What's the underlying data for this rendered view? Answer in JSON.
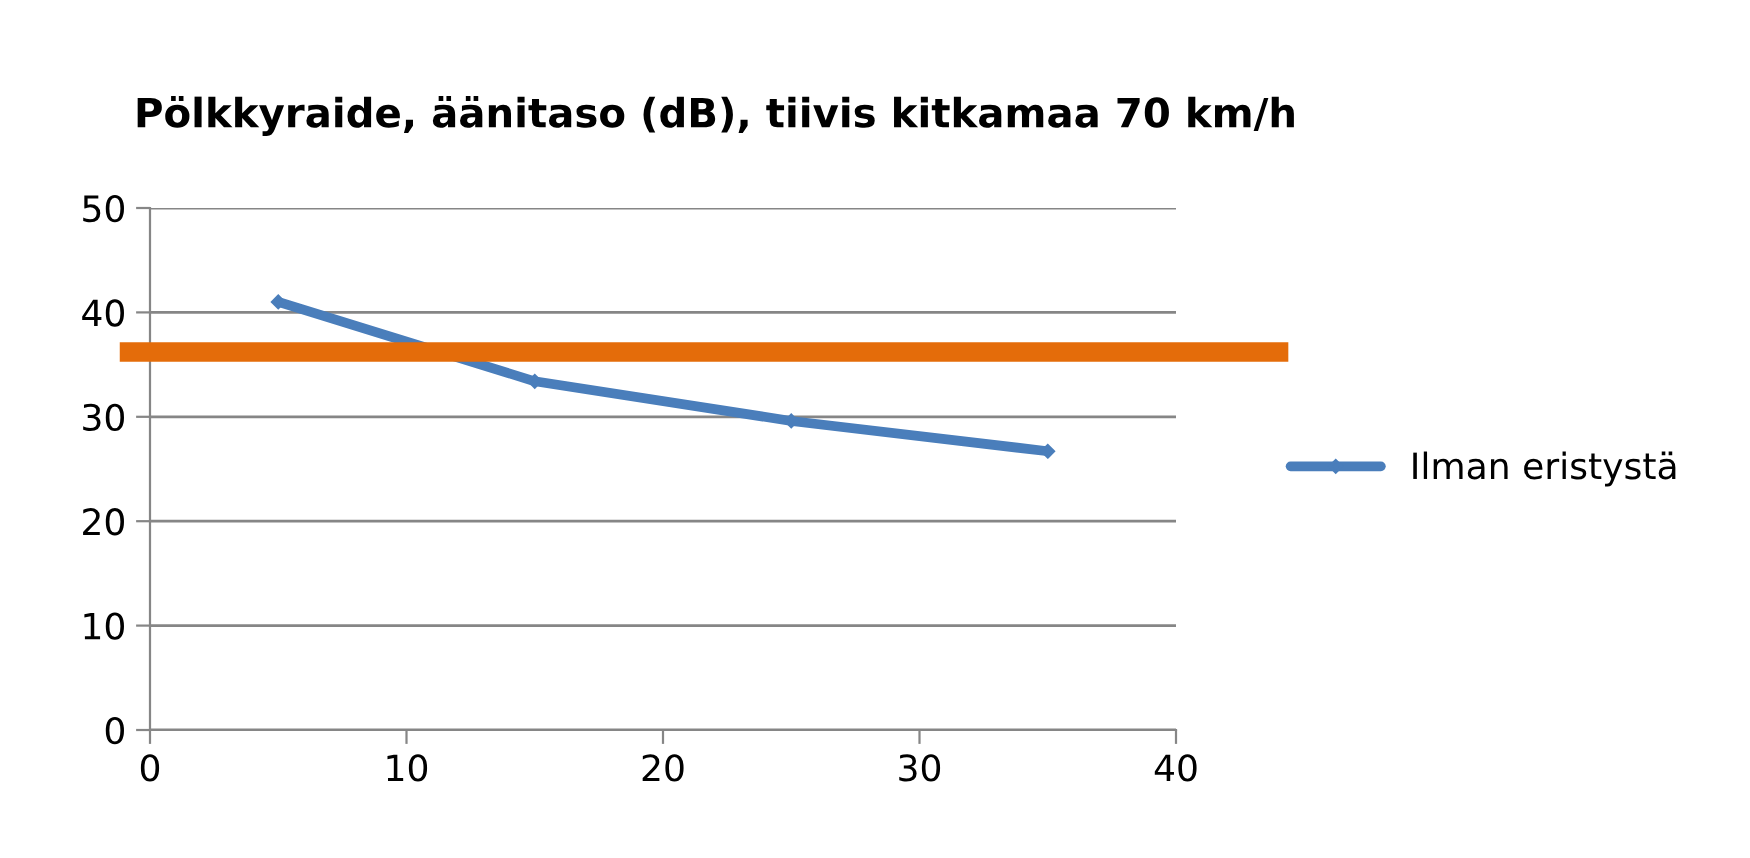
{
  "chart_data": {
    "type": "line",
    "title": "Pölkkyraide, äänitaso (dB), tiivis kitkamaa 70 km/h",
    "x": [
      5,
      15,
      25,
      35
    ],
    "series": [
      {
        "name": "Ilman eristystä",
        "color": "#4a7ebb",
        "values": [
          41.0,
          33.4,
          29.6,
          26.7
        ]
      }
    ],
    "xlim": [
      0,
      40
    ],
    "xticks": [
      0,
      10,
      20,
      30,
      40
    ],
    "ylim": [
      0,
      50
    ],
    "yticks": [
      0,
      10,
      20,
      30,
      40,
      50
    ],
    "ref_lines": [
      {
        "axis": "y",
        "value": 36.2,
        "color": "#e46c0a"
      }
    ],
    "grid": "y",
    "legend": "right",
    "marker": "diamond",
    "line_style": "solid"
  }
}
